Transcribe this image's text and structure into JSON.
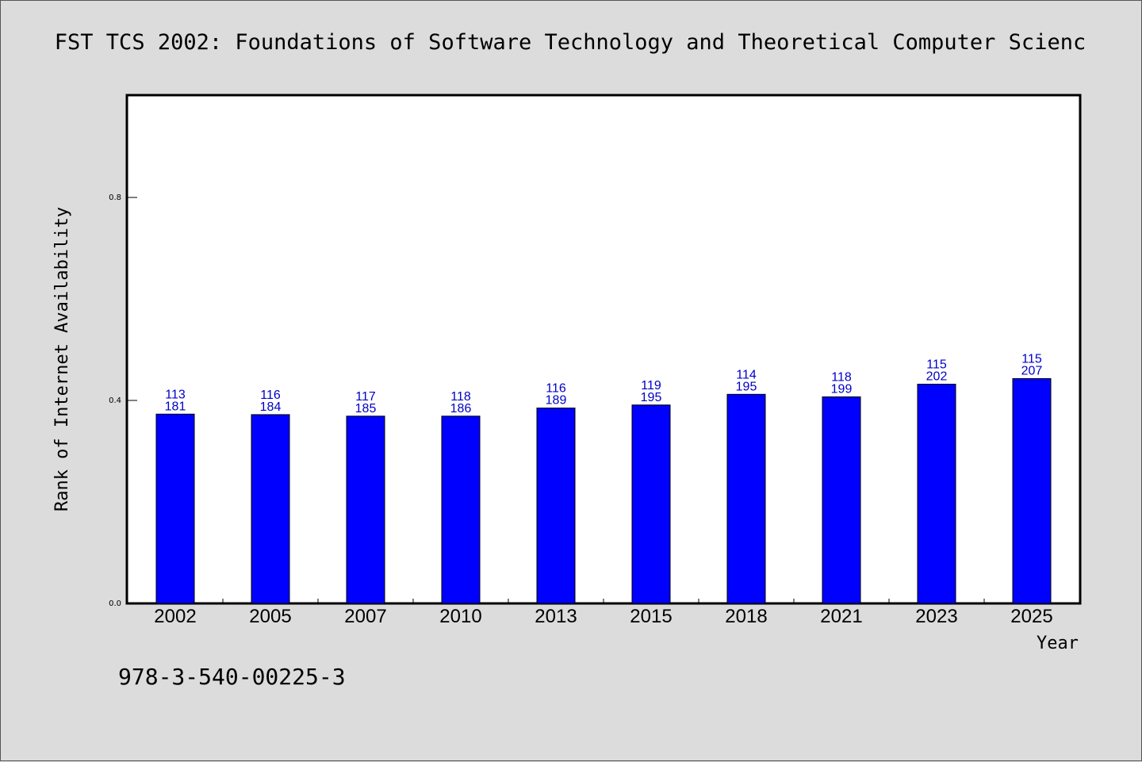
{
  "chart_data": {
    "type": "bar",
    "title": "FST TCS 2002: Foundations of Software Technology and Theoretical Computer Scienc",
    "xlabel": "Year",
    "ylabel": "Rank of Internet Availability",
    "categories": [
      "2002",
      "2005",
      "2007",
      "2010",
      "2013",
      "2015",
      "2018",
      "2021",
      "2023",
      "2025"
    ],
    "values": [
      0.373,
      0.372,
      0.369,
      0.369,
      0.385,
      0.391,
      0.412,
      0.407,
      0.432,
      0.443
    ],
    "labels_top": [
      "113",
      "116",
      "117",
      "118",
      "116",
      "119",
      "114",
      "118",
      "115",
      "115"
    ],
    "labels_bottom": [
      "181",
      "184",
      "185",
      "186",
      "189",
      "195",
      "195",
      "199",
      "202",
      "207"
    ],
    "ylim": [
      0,
      1.0
    ],
    "yticks": [
      0.0,
      0.4,
      0.8
    ],
    "ytick_labels": [
      "0.0",
      "0.4",
      "0.8"
    ],
    "grid": false,
    "bar_color": "#0000ff",
    "label_color": "#0000c8",
    "background": "#dcdcdc",
    "plot_background": "#ffffff"
  },
  "footer": {
    "isbn": "978-3-540-00225-3"
  }
}
